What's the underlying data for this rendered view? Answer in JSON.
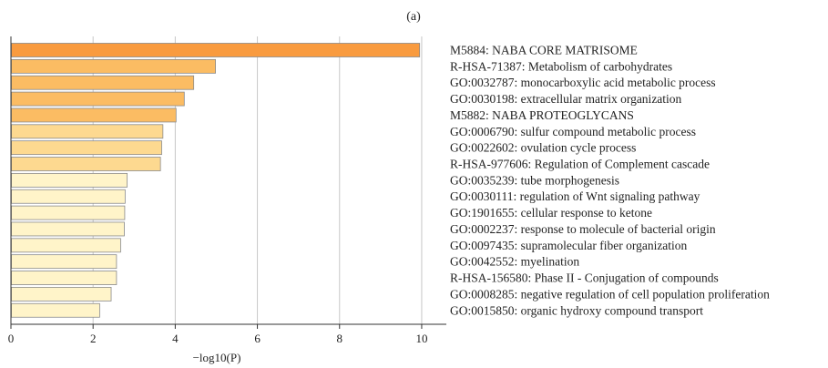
{
  "panel_label": "(a)",
  "chart_data": {
    "type": "bar",
    "orientation": "horizontal",
    "xlabel": "−log10(P)",
    "xlim": [
      0,
      10.6
    ],
    "xticks": [
      0,
      2,
      4,
      6,
      8,
      10
    ],
    "grid": true,
    "categories": [
      "M5884: NABA CORE MATRISOME",
      "R-HSA-71387: Metabolism of carbohydrates",
      "GO:0032787: monocarboxylic acid metabolic process",
      "GO:0030198: extracellular matrix organization",
      "M5882: NABA PROTEOGLYCANS",
      "GO:0006790: sulfur compound metabolic process",
      "GO:0022602: ovulation cycle process",
      "R-HSA-977606: Regulation of Complement cascade",
      "GO:0035239: tube morphogenesis",
      "GO:0030111: regulation of Wnt signaling pathway",
      "GO:1901655: cellular response to ketone",
      "GO:0002237: response to molecule of bacterial origin",
      "GO:0097435: supramolecular fiber organization",
      "GO:0042552: myelination",
      "R-HSA-156580: Phase II - Conjugation of compounds",
      "GO:0008285: negative regulation of cell population proliferation",
      "GO:0015850: organic hydroxy compound transport"
    ],
    "values": [
      9.95,
      4.98,
      4.45,
      4.22,
      4.02,
      3.7,
      3.67,
      3.64,
      2.83,
      2.78,
      2.77,
      2.76,
      2.67,
      2.57,
      2.57,
      2.44,
      2.16
    ],
    "colors": [
      "#f99b3f",
      "#fbbc63",
      "#fbbc63",
      "#fbbc63",
      "#fbbc63",
      "#fdd990",
      "#fdd990",
      "#fdd990",
      "#fff4c9",
      "#fff4c9",
      "#fff4c9",
      "#fff4c9",
      "#fff4c9",
      "#fff4c9",
      "#fff4c9",
      "#fff4c9",
      "#fff4c9"
    ],
    "bar_stroke": "#8a8a8a",
    "grid_color": "#c8c8c8",
    "axis_color": "#333333"
  }
}
